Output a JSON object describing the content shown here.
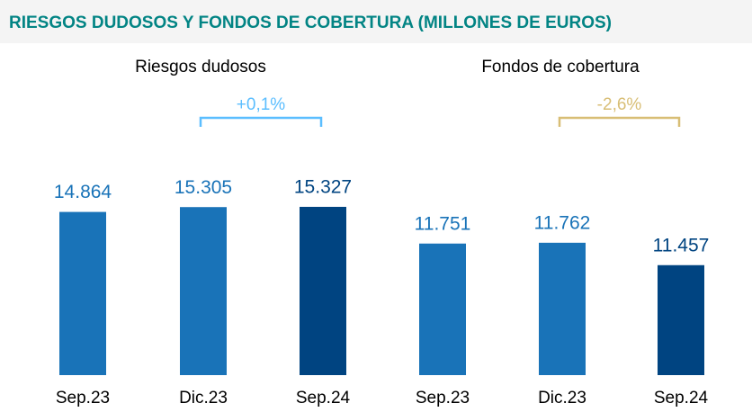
{
  "title": "RIESGOS DUDOSOS Y FONDOS DE COBERTURA (MILLONES DE EUROS)",
  "chart_data": [
    {
      "type": "bar",
      "subtitle": "Riesgos dudosos",
      "categories": [
        "Sep.23",
        "Dic.23",
        "Sep.24"
      ],
      "values": [
        14864,
        15305,
        15327
      ],
      "value_labels": [
        "14.864",
        "15.305",
        "15.327"
      ],
      "colors": [
        "#1973b8",
        "#1973b8",
        "#004481"
      ],
      "ylim": [
        0,
        18600
      ],
      "annotation": {
        "text": "+0,1%",
        "color": "#5bbeff"
      }
    },
    {
      "type": "bar",
      "subtitle": "Fondos de cobertura",
      "categories": [
        "Sep.23",
        "Dic.23",
        "Sep.24"
      ],
      "values": [
        11751,
        11762,
        11457
      ],
      "value_labels": [
        "11.751",
        "11.762",
        "11.457"
      ],
      "colors": [
        "#1973b8",
        "#1973b8",
        "#004481"
      ],
      "ylim": [
        9960,
        12740
      ],
      "annotation": {
        "text": "-2,6%",
        "color": "#d8be75"
      }
    }
  ]
}
